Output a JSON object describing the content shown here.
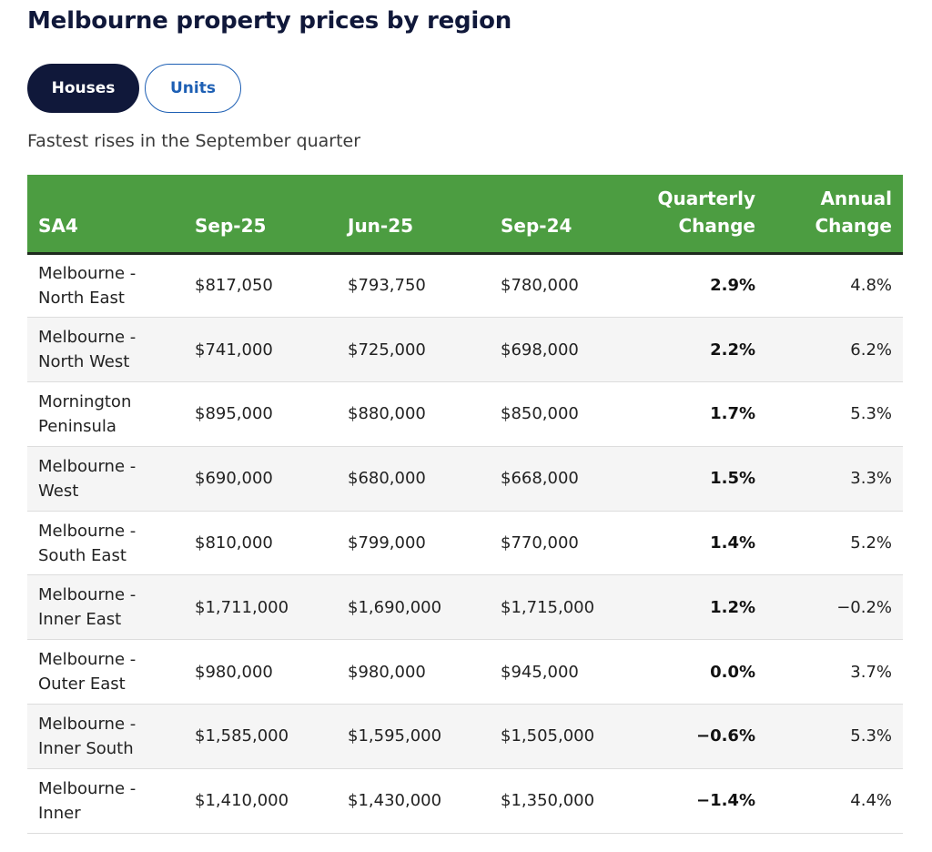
{
  "page": {
    "title": "Melbourne property prices by region",
    "subtitle": "Fastest rises in the September quarter"
  },
  "toggle": {
    "houses_label": "Houses",
    "units_label": "Units",
    "selected": "Houses"
  },
  "colors": {
    "header_bg": "#4c9d41",
    "title_color": "#10183a",
    "active_button_bg": "#10183a",
    "inactive_button_border": "#1d5fb4"
  },
  "table": {
    "headers": {
      "sa4": "SA4",
      "sep25": "Sep-25",
      "jun25": "Jun-25",
      "sep24": "Sep-24",
      "quarterly_line1": "Quarterly",
      "quarterly_line2": "Change",
      "annual_line1": "Annual",
      "annual_line2": "Change"
    },
    "rows": [
      {
        "region_line1": "Melbourne -",
        "region_line2": "North East",
        "sep25": "$817,050",
        "jun25": "$793,750",
        "sep24": "$780,000",
        "quarterly": "2.9%",
        "annual": "4.8%"
      },
      {
        "region_line1": "Melbourne -",
        "region_line2": "North West",
        "sep25": "$741,000",
        "jun25": "$725,000",
        "sep24": "$698,000",
        "quarterly": "2.2%",
        "annual": "6.2%"
      },
      {
        "region_line1": "Mornington",
        "region_line2": "Peninsula",
        "sep25": "$895,000",
        "jun25": "$880,000",
        "sep24": "$850,000",
        "quarterly": "1.7%",
        "annual": "5.3%"
      },
      {
        "region_line1": "Melbourne -",
        "region_line2": "West",
        "sep25": "$690,000",
        "jun25": "$680,000",
        "sep24": "$668,000",
        "quarterly": "1.5%",
        "annual": "3.3%"
      },
      {
        "region_line1": "Melbourne -",
        "region_line2": "South East",
        "sep25": "$810,000",
        "jun25": "$799,000",
        "sep24": "$770,000",
        "quarterly": "1.4%",
        "annual": "5.2%"
      },
      {
        "region_line1": "Melbourne -",
        "region_line2": "Inner East",
        "sep25": "$1,711,000",
        "jun25": "$1,690,000",
        "sep24": "$1,715,000",
        "quarterly": "1.2%",
        "annual": "−0.2%"
      },
      {
        "region_line1": "Melbourne -",
        "region_line2": "Outer East",
        "sep25": "$980,000",
        "jun25": "$980,000",
        "sep24": "$945,000",
        "quarterly": "0.0%",
        "annual": "3.7%"
      },
      {
        "region_line1": "Melbourne -",
        "region_line2": "Inner South",
        "sep25": "$1,585,000",
        "jun25": "$1,595,000",
        "sep24": "$1,505,000",
        "quarterly": "−0.6%",
        "annual": "5.3%"
      },
      {
        "region_line1": "Melbourne -",
        "region_line2": "Inner",
        "sep25": "$1,410,000",
        "jun25": "$1,430,000",
        "sep24": "$1,350,000",
        "quarterly": "−1.4%",
        "annual": "4.4%"
      }
    ]
  }
}
